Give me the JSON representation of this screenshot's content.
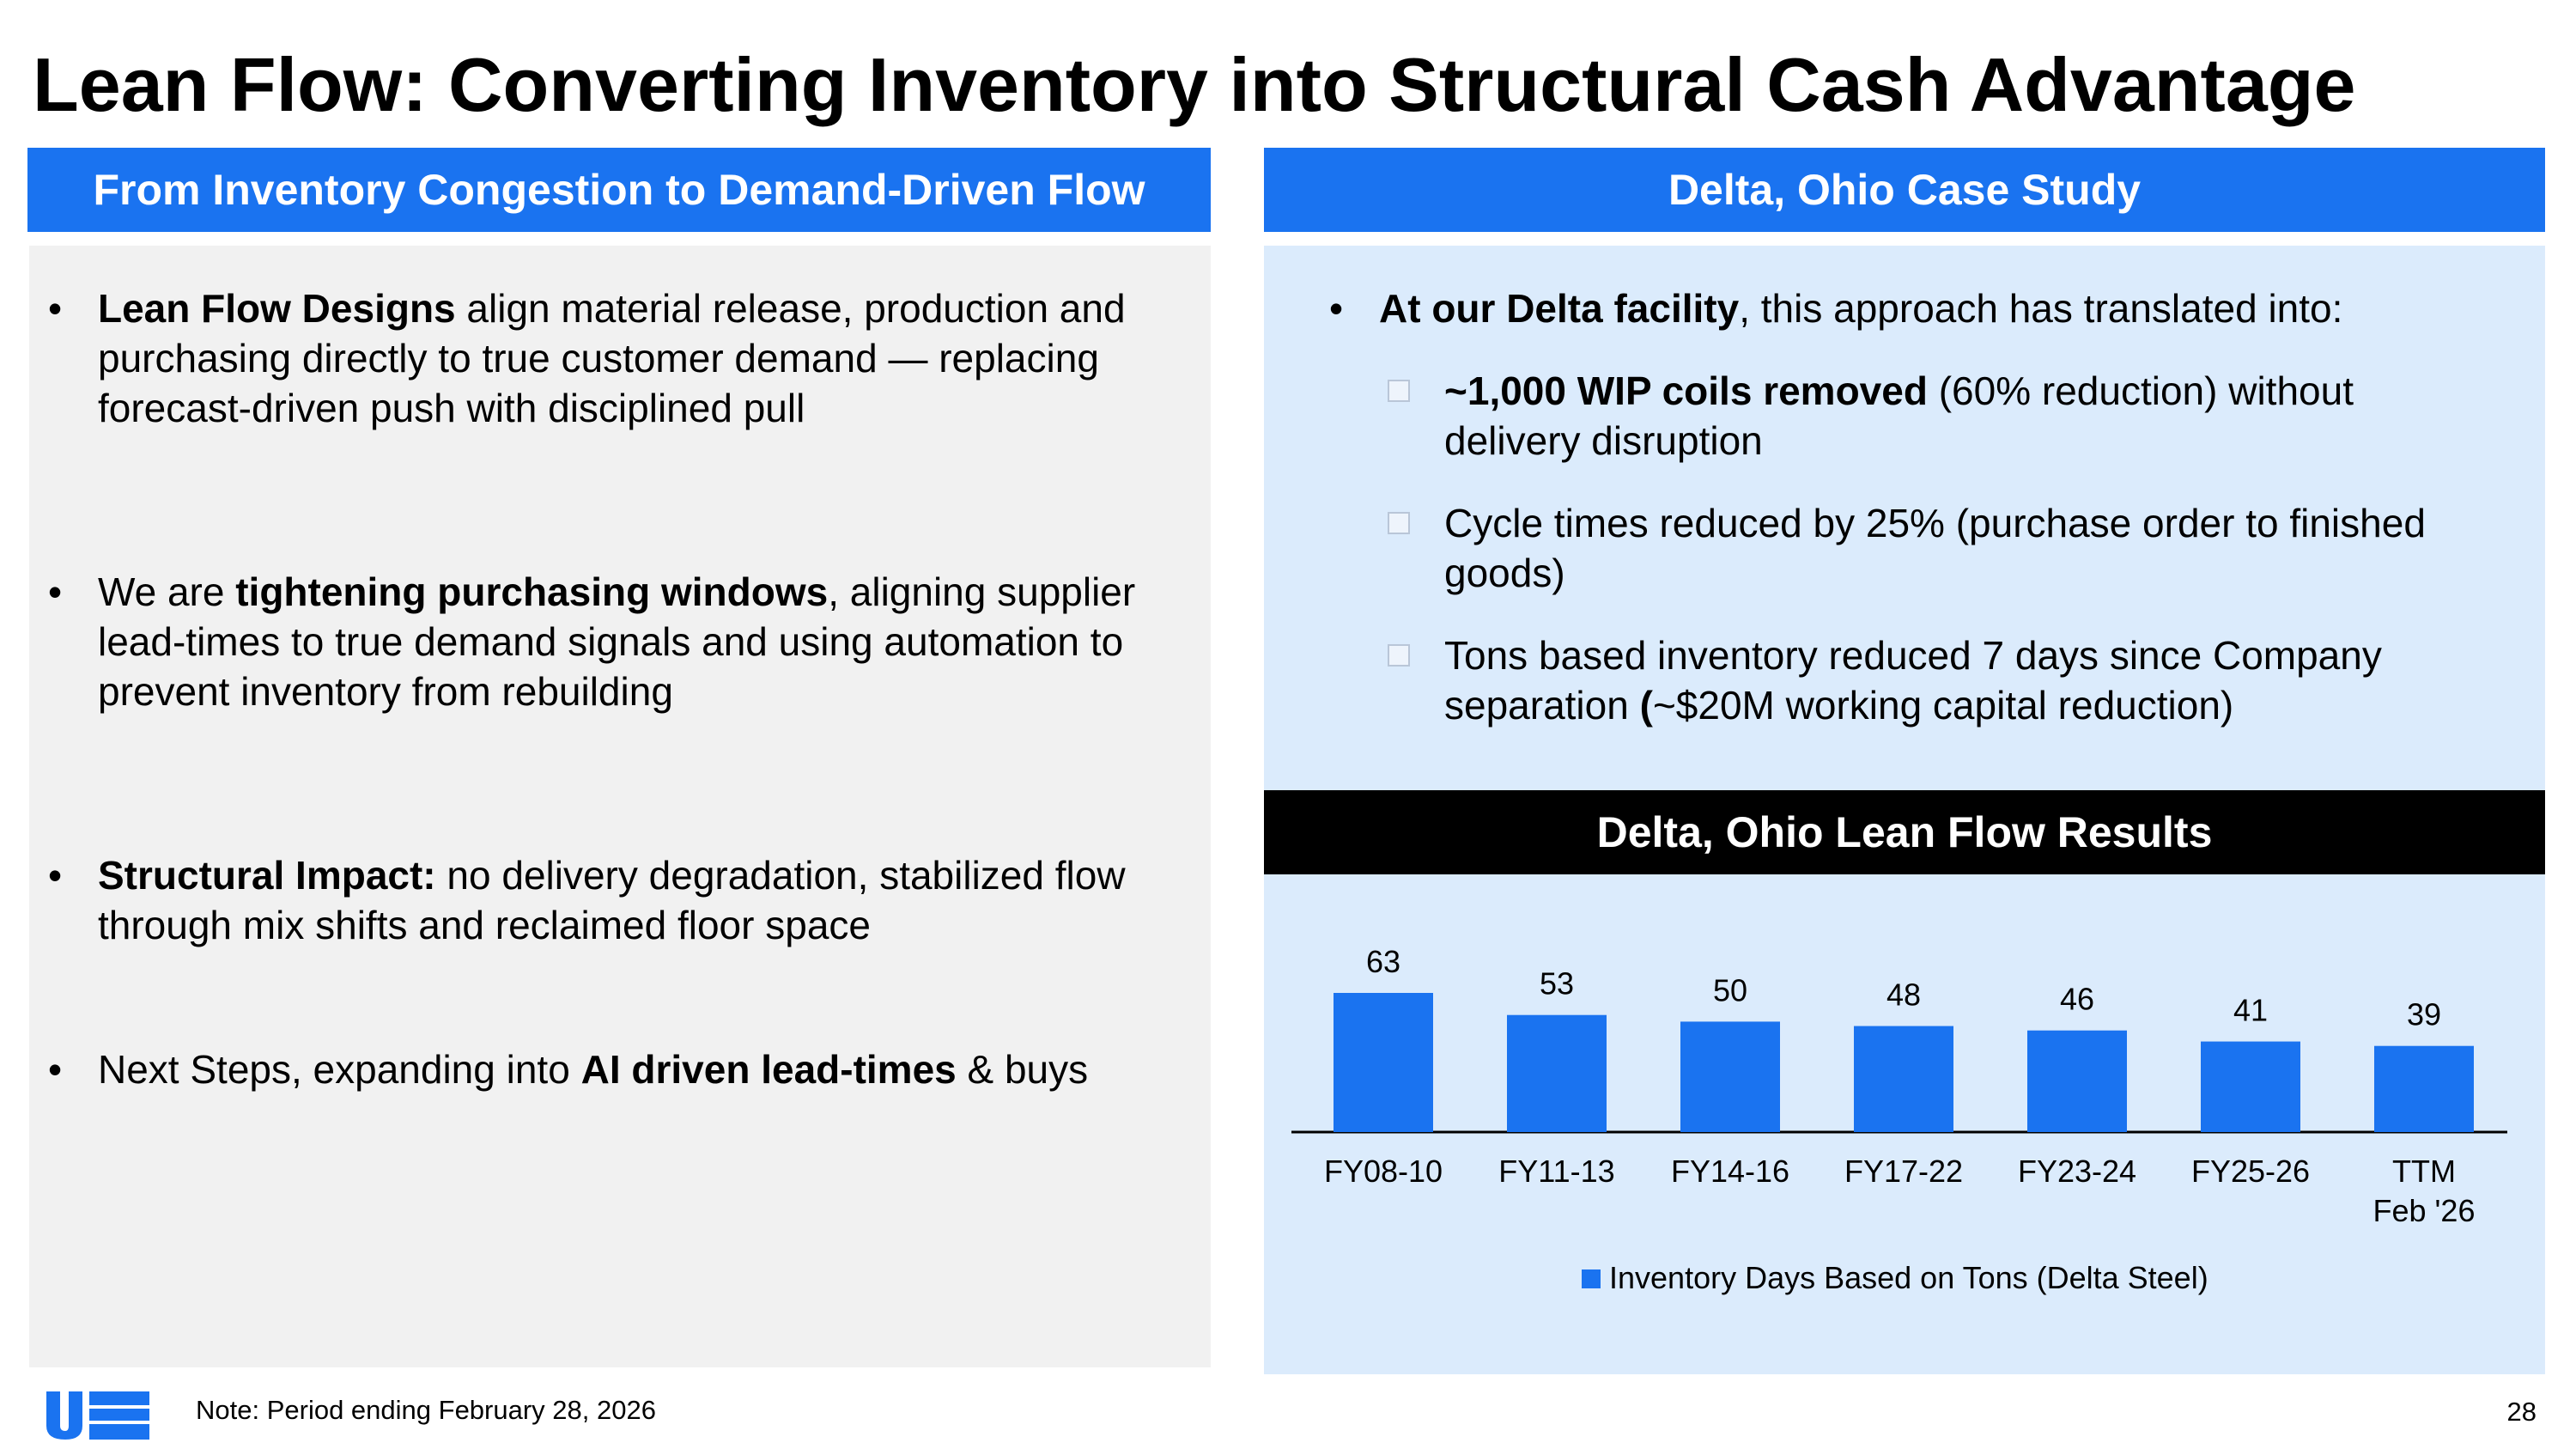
{
  "title": "Lean Flow: Converting Inventory into Structural Cash Advantage",
  "left": {
    "header": "From Inventory Congestion to Demand-Driven Flow",
    "bullets": [
      {
        "bold": "Lean Flow Designs",
        "after": " align material release, production and purchasing directly to true customer demand — replacing forecast-driven push with disciplined pull"
      },
      {
        "before": "We are ",
        "bold": "tightening purchasing windows",
        "after": ", aligning supplier lead-times to true demand signals and using automation to prevent inventory from rebuilding"
      },
      {
        "bold": "Structural Impact:",
        "after": " no delivery degradation, stabilized flow through mix shifts and reclaimed floor space"
      },
      {
        "before": "Next Steps, expanding into ",
        "bold": "AI driven lead-times",
        "after": " & buys"
      }
    ]
  },
  "right": {
    "header": "Delta, Ohio Case Study",
    "intro": {
      "bold": "At our Delta facility",
      "after": ", this approach has translated into:"
    },
    "subbullets": [
      {
        "bold": "~1,000 WIP coils removed",
        "after": " (60% reduction) without delivery disruption"
      },
      {
        "text": "Cycle times reduced by 25% (purchase order to finished goods)"
      },
      {
        "before": "Tons based inventory reduced 7 days since Company separation ",
        "bold": "(",
        "after": "~$20M working capital reduction)"
      }
    ],
    "results_header": "Delta, Ohio Lean Flow Results"
  },
  "chart_data": {
    "type": "bar",
    "categories": [
      "FY08-10",
      "FY11-13",
      "FY14-16",
      "FY17-22",
      "FY23-24",
      "FY25-26",
      "TTM Feb '26"
    ],
    "category_lines": [
      [
        "FY08-10"
      ],
      [
        "FY11-13"
      ],
      [
        "FY14-16"
      ],
      [
        "FY17-22"
      ],
      [
        "FY23-24"
      ],
      [
        "FY25-26"
      ],
      [
        "TTM",
        "Feb '26"
      ]
    ],
    "series": [
      {
        "name": "Inventory Days Based on Tons (Delta Steel)",
        "values": [
          63,
          53,
          50,
          48,
          46,
          41,
          39
        ]
      }
    ],
    "title": "",
    "xlabel": "",
    "ylabel": "",
    "legend": "bottom",
    "color": "#1a73f0"
  },
  "footer": {
    "note": "Note: Period ending February 28, 2026",
    "page_number": "28",
    "logo_icon": "us-logo-icon"
  },
  "colors": {
    "accent": "#1a73f0",
    "left_panel": "#f1f1f1",
    "right_panel": "#dbebfc"
  }
}
